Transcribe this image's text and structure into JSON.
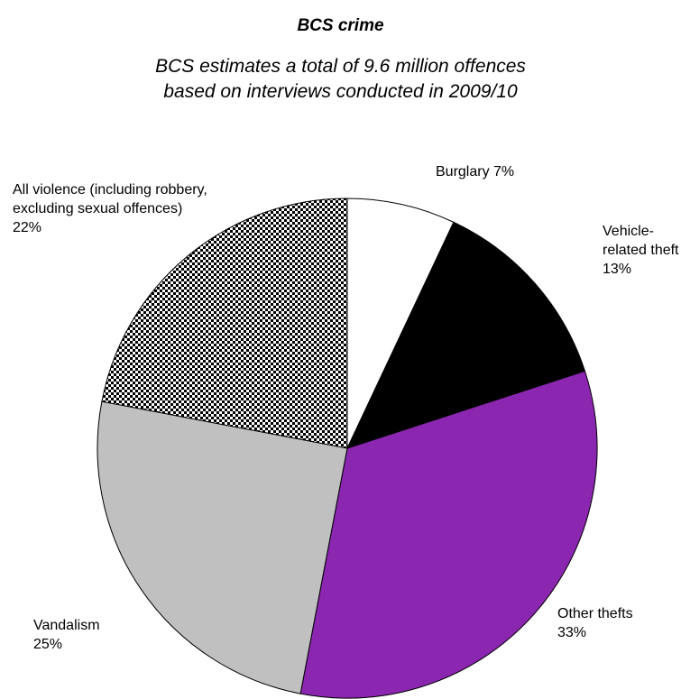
{
  "chart_data": {
    "type": "pie",
    "title": "BCS crime",
    "subtitle": [
      "BCS estimates a total of 9.6 million offences",
      "based on interviews conducted in 2009/10"
    ],
    "categories": [
      "Burglary",
      "Vehicle-related theft",
      "Other thefts",
      "Vandalism",
      "All violence (including robbery, excluding sexual offences)"
    ],
    "values": [
      7,
      13,
      33,
      25,
      22
    ],
    "value_labels": [
      "7%",
      "13%",
      "33%",
      "25%",
      "22%"
    ],
    "colors": [
      "#ffffff",
      "#000000",
      "#8b26b0",
      "#c0c0c0",
      "#000000"
    ],
    "patterned": [
      false,
      false,
      false,
      false,
      true
    ]
  }
}
